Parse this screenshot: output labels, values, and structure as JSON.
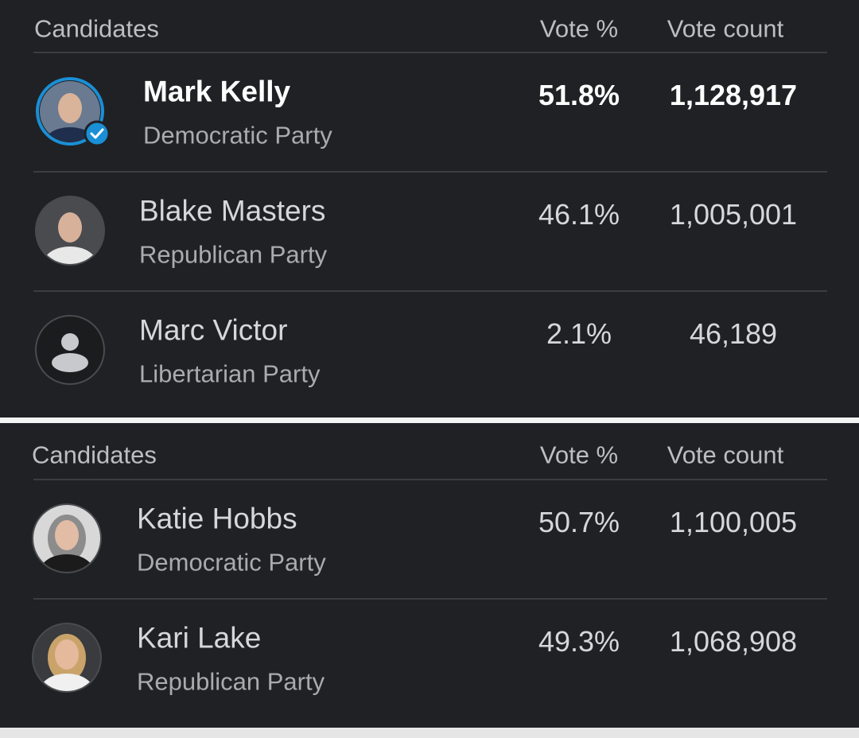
{
  "tables": [
    {
      "header": {
        "candidates": "Candidates",
        "vote_pct": "Vote %",
        "vote_count": "Vote count"
      },
      "rows": [
        {
          "name": "Mark Kelly",
          "party": "Democratic Party",
          "vote_pct": "51.8%",
          "vote_count": "1,128,917"
        },
        {
          "name": "Blake Masters",
          "party": "Republican Party",
          "vote_pct": "46.1%",
          "vote_count": "1,005,001"
        },
        {
          "name": "Marc Victor",
          "party": "Libertarian Party",
          "vote_pct": "2.1%",
          "vote_count": "46,189"
        }
      ]
    },
    {
      "header": {
        "candidates": "Candidates",
        "vote_pct": "Vote %",
        "vote_count": "Vote count"
      },
      "rows": [
        {
          "name": "Katie Hobbs",
          "party": "Democratic Party",
          "vote_pct": "50.7%",
          "vote_count": "1,100,005"
        },
        {
          "name": "Kari Lake",
          "party": "Republican Party",
          "vote_pct": "49.3%",
          "vote_count": "1,068,908"
        }
      ]
    }
  ]
}
